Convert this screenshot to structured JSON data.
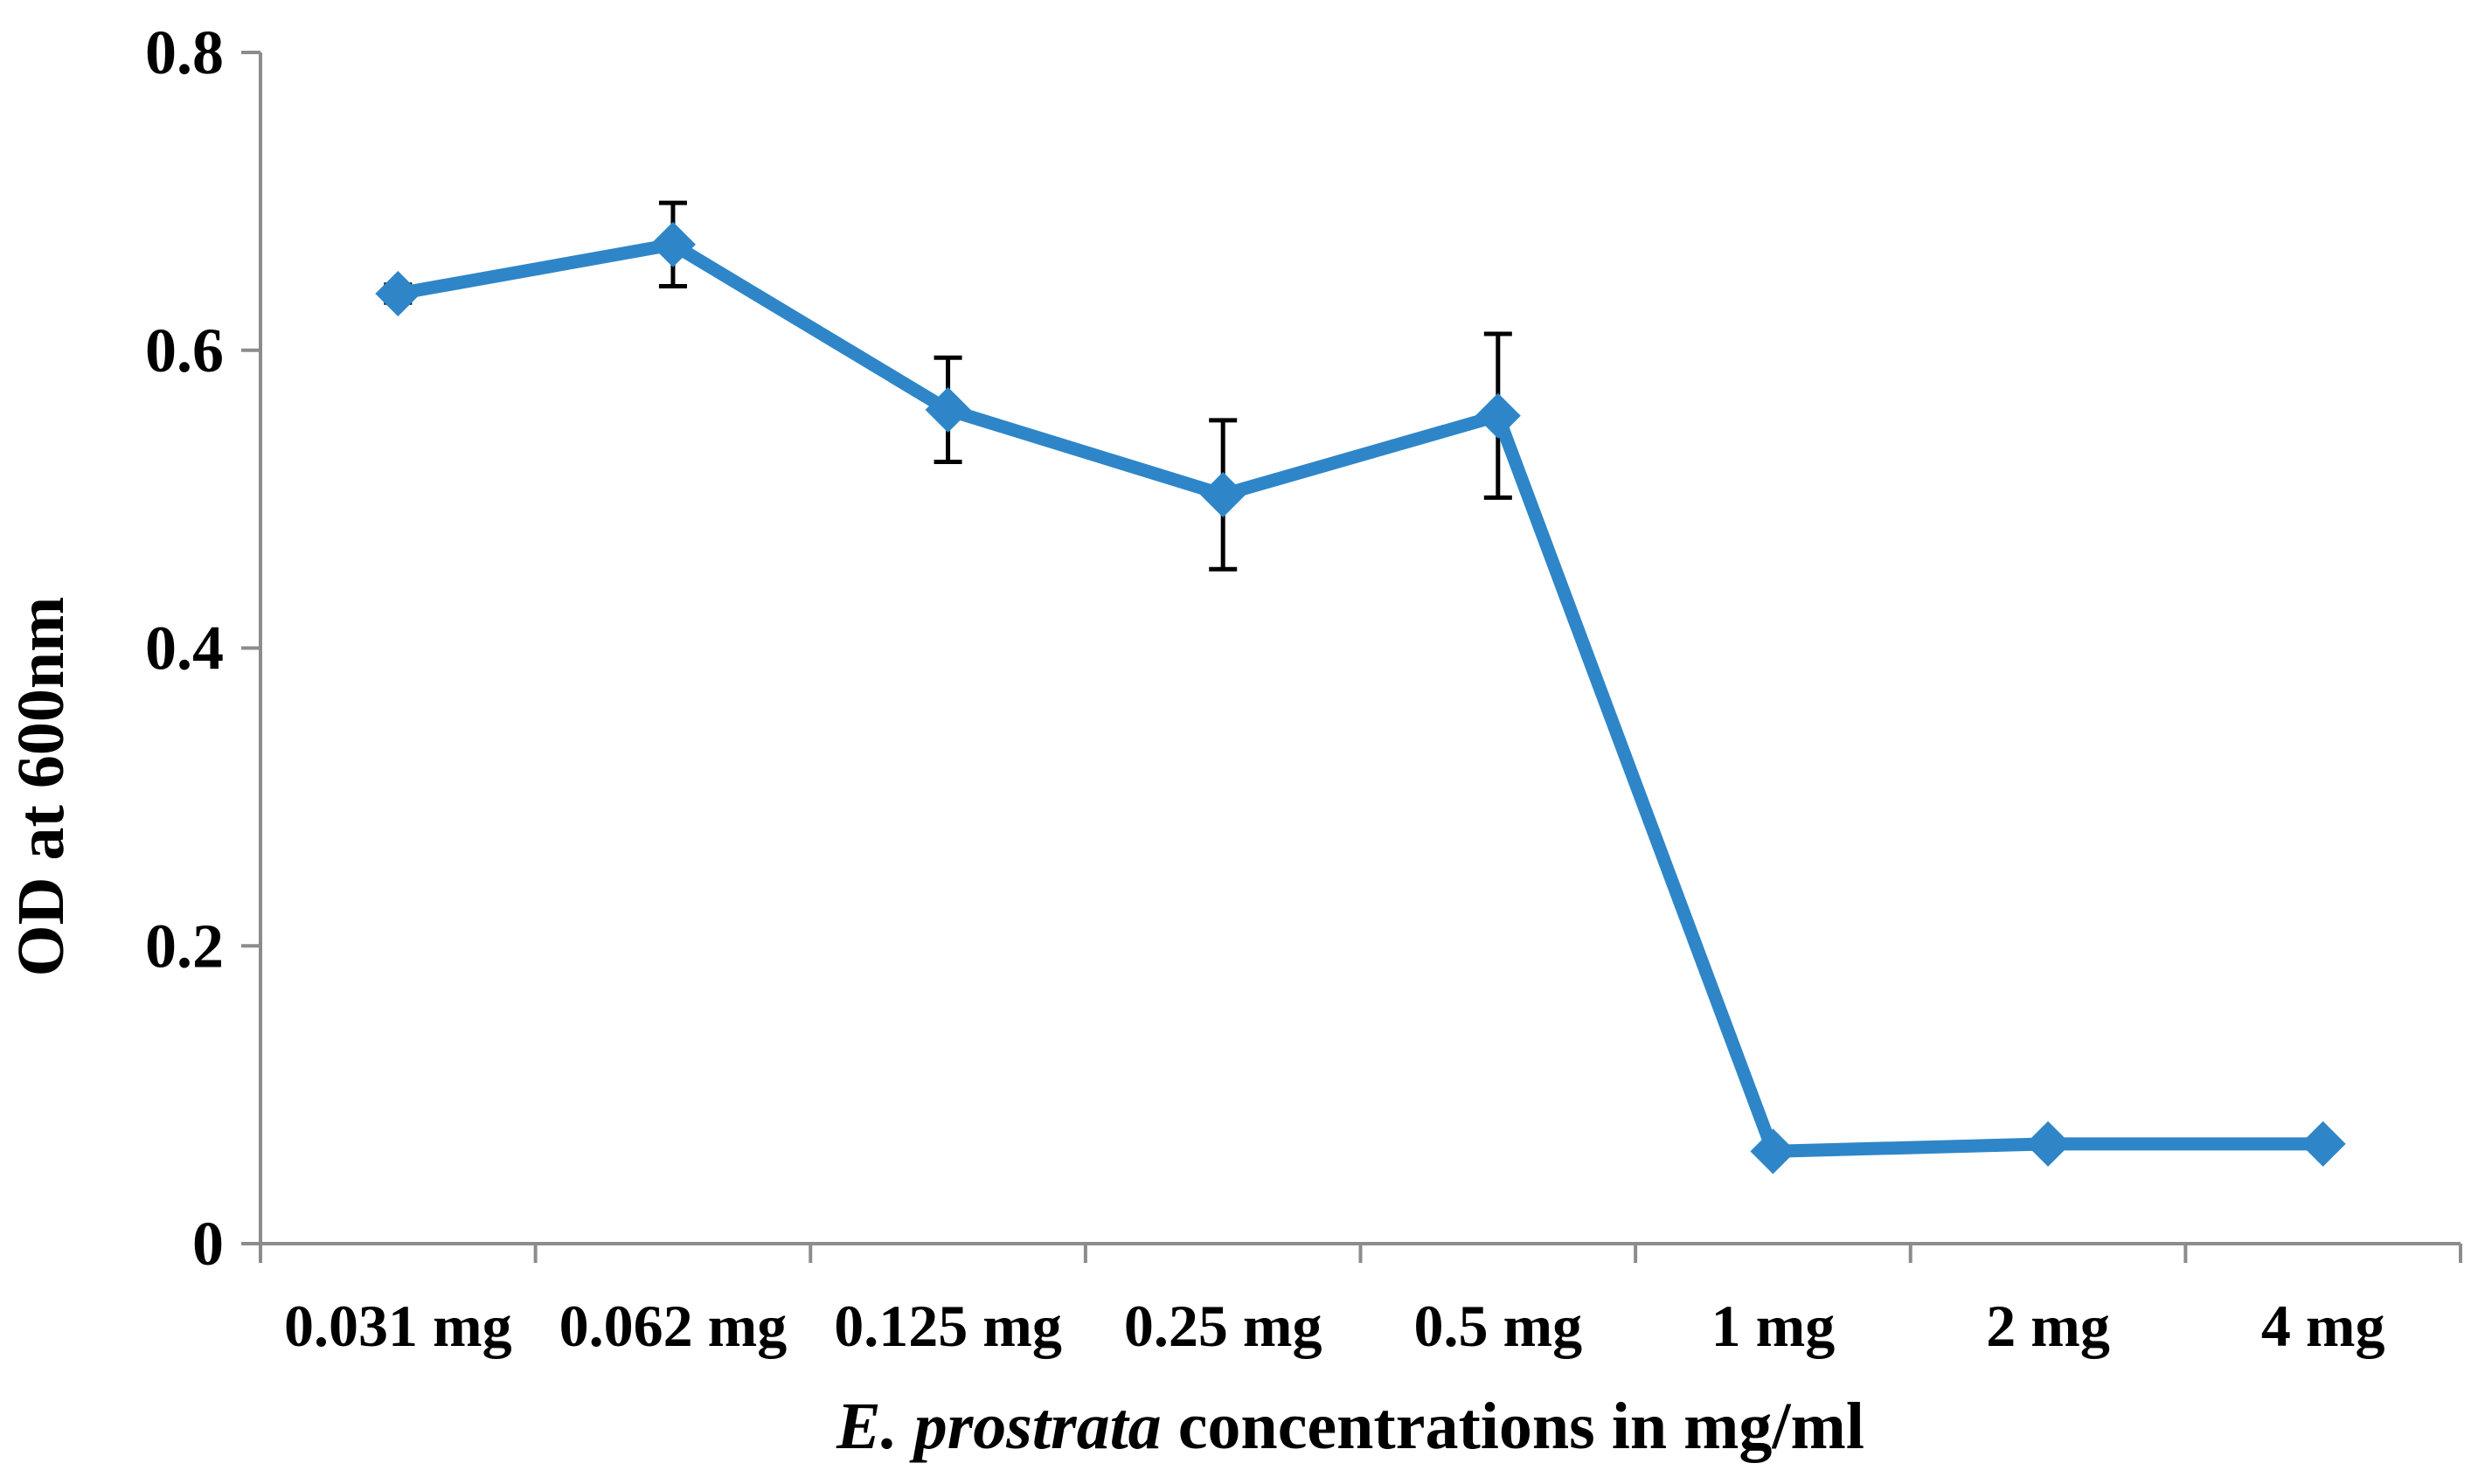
{
  "chart_data": {
    "type": "line",
    "title": "",
    "categories": [
      "0.031 mg",
      "0.062 mg",
      "0.125 mg",
      "0.25 mg",
      "0.5 mg",
      "1 mg",
      "2 mg",
      "4 mg"
    ],
    "series": [
      {
        "name": "OD at 600nm",
        "color": "#2E86C8",
        "marker": "diamond",
        "values": [
          0.638,
          0.671,
          0.56,
          0.503,
          0.556,
          0.062,
          0.067,
          0.067
        ],
        "error": [
          0.006,
          0.028,
          0.035,
          0.05,
          0.055,
          0.004,
          0.003,
          0.003
        ]
      }
    ],
    "ylabel": "OD at 600nm",
    "xlabel_italic": "E. prostrata",
    "xlabel_rest": " concentrations in mg/ml",
    "ylim": [
      0,
      0.8
    ],
    "yticks": [
      0,
      0.2,
      0.4,
      0.6,
      0.8
    ],
    "ytick_labels": [
      "0",
      "0.2",
      "0.4",
      "0.6",
      "0.8"
    ],
    "grid": false,
    "legend": "none",
    "axis_color": "#8C8C8C",
    "errorbar_color": "#000000"
  }
}
